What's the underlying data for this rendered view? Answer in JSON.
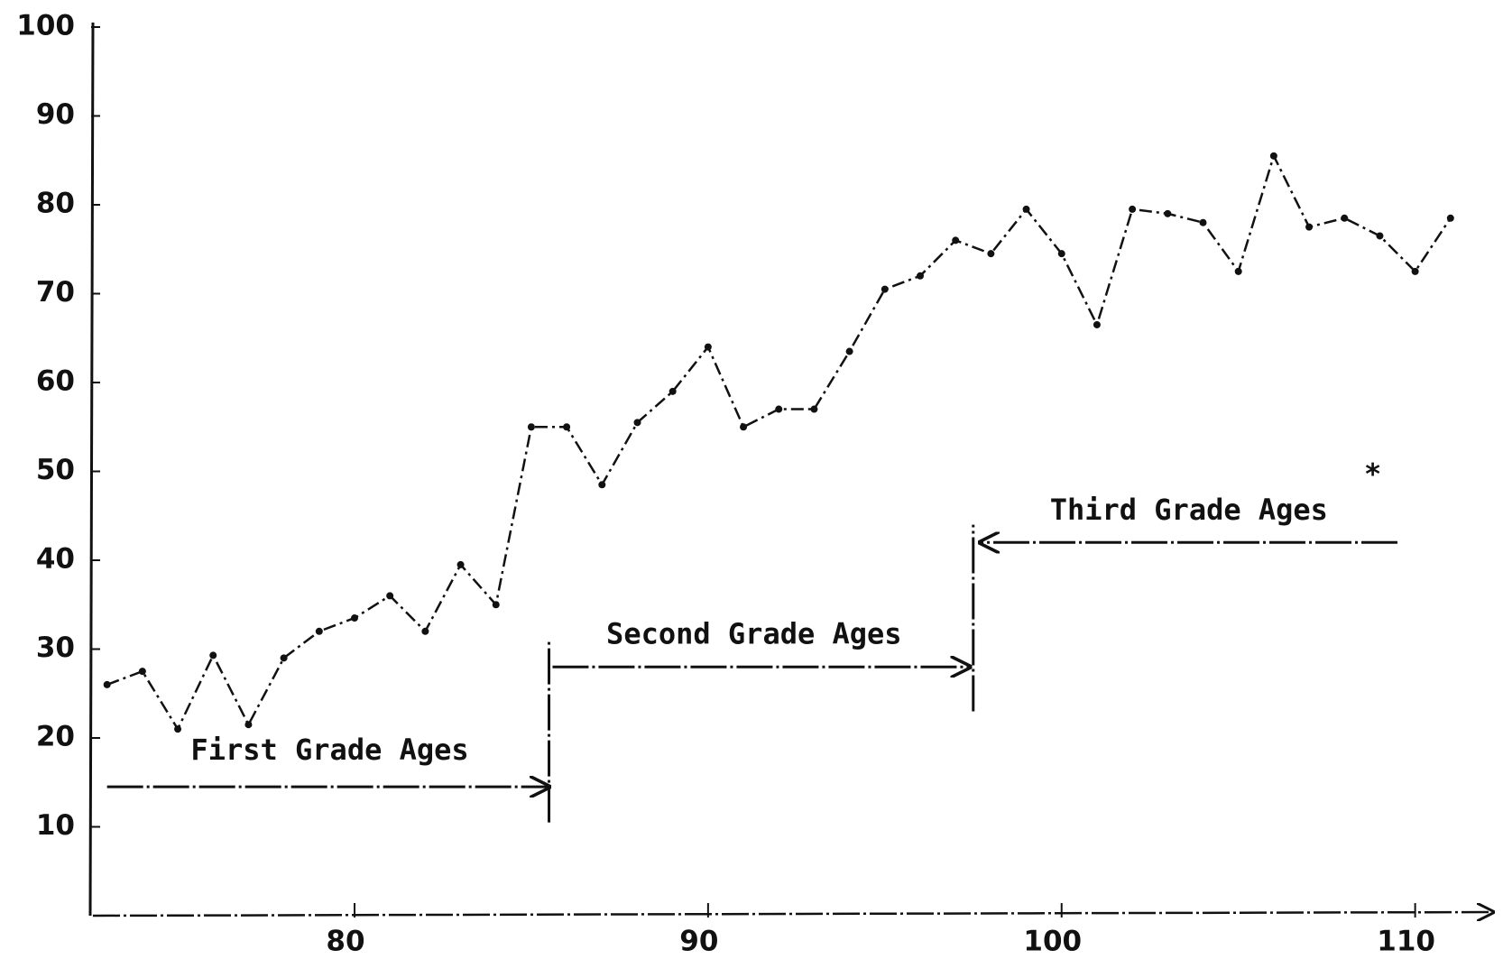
{
  "chart_data": {
    "type": "line",
    "x": [
      73,
      74,
      75,
      76,
      77,
      78,
      79,
      80,
      81,
      82,
      83,
      84,
      85,
      86,
      87,
      88,
      89,
      90,
      91,
      92,
      93,
      94,
      95,
      96,
      97,
      98,
      99,
      100,
      101,
      102,
      103,
      104,
      105,
      106,
      107,
      108,
      109,
      110,
      111
    ],
    "series": [
      {
        "color": "#111111",
        "values": [
          26,
          27.5,
          21,
          29.3,
          21.5,
          29,
          32,
          33.5,
          36,
          32,
          39.5,
          35,
          55,
          55,
          48.5,
          55.5,
          59,
          64,
          55,
          57,
          57,
          63.5,
          70.5,
          72,
          76,
          74.5,
          79.5,
          74.5,
          66.5,
          79.5,
          79,
          78,
          72.5,
          85.5,
          77.5,
          78.5,
          76.5,
          72.5,
          78.5
        ]
      }
    ],
    "xlim": [
      72.6,
      112
    ],
    "xticks": [
      80,
      90,
      100,
      110
    ],
    "ylim": [
      0,
      100
    ],
    "yticks": [
      10,
      20,
      30,
      40,
      50,
      60,
      70,
      80,
      90,
      100
    ],
    "annotations": [
      "First Grade Ages",
      "Second Grade Ages",
      "Third Grade Ages",
      "*"
    ]
  }
}
